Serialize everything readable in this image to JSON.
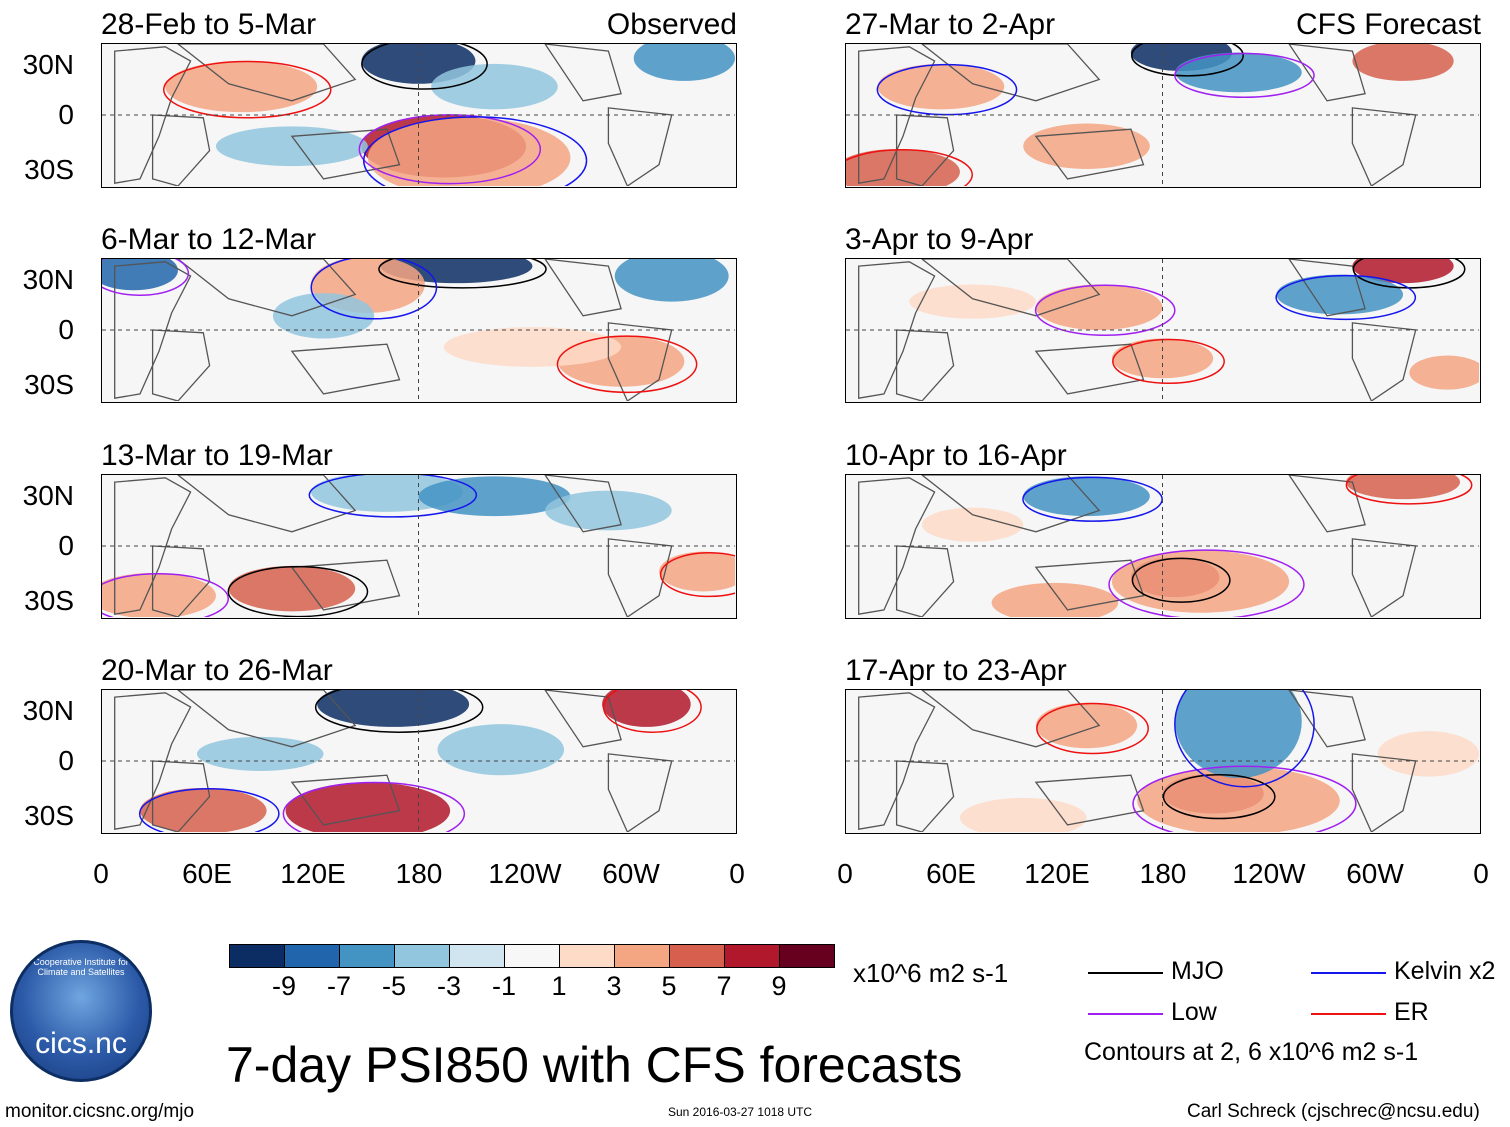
{
  "panels_left": [
    {
      "title": "28-Feb to 5-Mar",
      "label": "Observed"
    },
    {
      "title": "6-Mar to 12-Mar",
      "label": ""
    },
    {
      "title": "13-Mar to 19-Mar",
      "label": ""
    },
    {
      "title": "20-Mar to 26-Mar",
      "label": ""
    }
  ],
  "panels_right": [
    {
      "title": "27-Mar to 2-Apr",
      "label": "CFS Forecast"
    },
    {
      "title": "3-Apr to 9-Apr",
      "label": ""
    },
    {
      "title": "10-Apr to 16-Apr",
      "label": ""
    },
    {
      "title": "17-Apr to 23-Apr",
      "label": ""
    }
  ],
  "lat_labels": [
    "30N",
    "0",
    "30S"
  ],
  "lon_labels": [
    "0",
    "60E",
    "120E",
    "180",
    "120W",
    "60W",
    "0"
  ],
  "colorbar": {
    "colors": [
      "#0b2d63",
      "#2166ac",
      "#4393c3",
      "#92c5de",
      "#d1e5f0",
      "#f7f7f7",
      "#fddbc7",
      "#f4a582",
      "#d6604d",
      "#b2182b",
      "#67001f"
    ],
    "labels": [
      "-9",
      "-7",
      "-5",
      "-3",
      "-1",
      "1",
      "3",
      "5",
      "7",
      "9"
    ],
    "units": "x10^6 m2 s-1"
  },
  "legend": {
    "items": [
      {
        "label": "MJO",
        "color": "#000000"
      },
      {
        "label": "Kelvin x2",
        "color": "#1515ee"
      },
      {
        "label": "Low",
        "color": "#a020f0"
      },
      {
        "label": "ER",
        "color": "#ee1111"
      }
    ],
    "note": "Contours at 2, 6 x10^6 m2 s-1"
  },
  "title": "7-day PSI850 with CFS forecasts",
  "logo_text": "cics.nc",
  "logo_ring_text": "Cooperative Institute for Climate and Satellites",
  "footer": {
    "url": "monitor.cicsnc.org/mjo",
    "timestamp": "Sun 2016-03-27 1018 UTC",
    "author": "Carl Schreck (cjschrec@ncsu.edu)"
  }
}
